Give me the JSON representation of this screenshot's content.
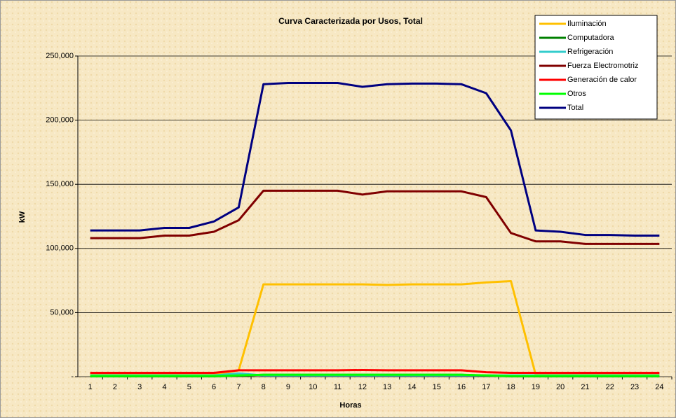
{
  "chart_data": {
    "type": "line",
    "title": "Curva Caracterizada por Usos, Total",
    "x_label": "Horas",
    "y_label": "kW",
    "categories": [
      "1",
      "2",
      "3",
      "4",
      "5",
      "6",
      "7",
      "8",
      "9",
      "10",
      "11",
      "12",
      "13",
      "14",
      "15",
      "16",
      "17",
      "18",
      "19",
      "20",
      "21",
      "22",
      "23",
      "24"
    ],
    "series": [
      {
        "name": "Iluminación",
        "color": "#ffc000",
        "values": [
          1500,
          1500,
          1500,
          1500,
          1500,
          1500,
          5000,
          72000,
          72000,
          72000,
          72000,
          72000,
          71500,
          72000,
          72000,
          72000,
          73500,
          74500,
          1500,
          1500,
          1500,
          1500,
          1500,
          1500
        ]
      },
      {
        "name": "Computadora",
        "color": "#008000",
        "values": [
          300,
          300,
          300,
          300,
          300,
          300,
          800,
          1500,
          1500,
          1500,
          1500,
          1500,
          1500,
          1500,
          1500,
          1500,
          800,
          300,
          300,
          300,
          300,
          300,
          300,
          300
        ]
      },
      {
        "name": "Refrigeración",
        "color": "#33cccc",
        "values": [
          1000,
          1000,
          1000,
          1000,
          1000,
          1000,
          2500,
          1000,
          1000,
          1000,
          1000,
          1000,
          1000,
          1000,
          1000,
          1000,
          1000,
          1000,
          1000,
          1000,
          1000,
          1000,
          1000,
          1000
        ]
      },
      {
        "name": "Fuerza Electromotriz",
        "color": "#800000",
        "values": [
          108000,
          108000,
          108000,
          110000,
          110000,
          113000,
          122000,
          145000,
          145000,
          145000,
          145000,
          142000,
          144500,
          144500,
          144500,
          144500,
          140000,
          112000,
          105500,
          105500,
          103500,
          103500,
          103500,
          103500
        ]
      },
      {
        "name": "Generación de calor",
        "color": "#ff0000",
        "values": [
          3000,
          3000,
          3000,
          3000,
          3000,
          3000,
          5000,
          5000,
          5000,
          5000,
          5000,
          5200,
          5000,
          5000,
          5000,
          5000,
          3500,
          3000,
          3000,
          3000,
          3000,
          3000,
          3000,
          3000
        ]
      },
      {
        "name": "Otros",
        "color": "#00ff00",
        "values": [
          500,
          500,
          500,
          500,
          500,
          500,
          1000,
          1500,
          1500,
          1500,
          1500,
          1500,
          1500,
          1500,
          1500,
          1500,
          1000,
          500,
          500,
          500,
          500,
          500,
          500,
          500
        ]
      },
      {
        "name": "Total",
        "color": "#000080",
        "values": [
          114000,
          114000,
          114000,
          116000,
          116000,
          121000,
          132000,
          228000,
          229000,
          229000,
          229000,
          226000,
          228000,
          228500,
          228500,
          228000,
          221000,
          192000,
          114000,
          113000,
          110500,
          110500,
          110000,
          110000
        ]
      }
    ],
    "ylim": [
      0,
      250000
    ],
    "yticks": [
      {
        "value": 0,
        "label": "-"
      },
      {
        "value": 50000,
        "label": "50,000"
      },
      {
        "value": 100000,
        "label": "100,000"
      },
      {
        "value": 150000,
        "label": "150,000"
      },
      {
        "value": 200000,
        "label": "200,000"
      },
      {
        "value": 250000,
        "label": "250,000"
      }
    ],
    "grid": true
  }
}
